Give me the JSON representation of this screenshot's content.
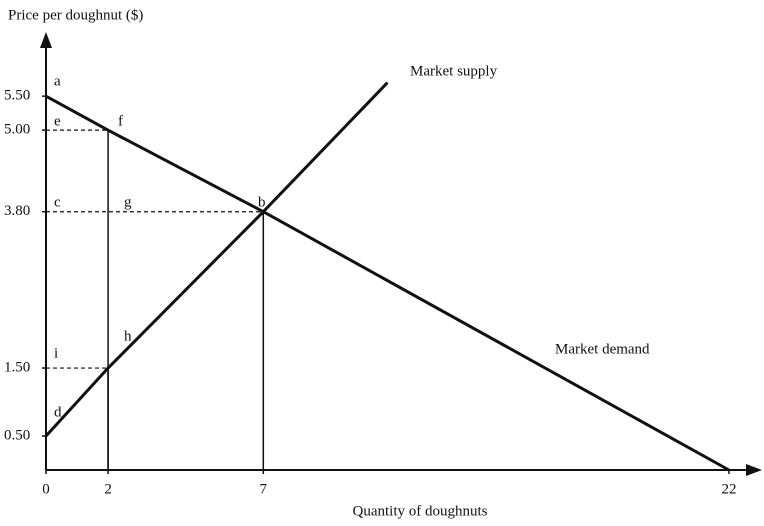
{
  "chart_data": {
    "type": "line",
    "y_label": "Price per doughnut ($)",
    "x_label": "Quantity of doughnuts",
    "series": [
      {
        "name": "Market supply",
        "color": "#111111",
        "x": [
          0,
          2,
          7,
          11
        ],
        "values": [
          0.5,
          1.5,
          3.8,
          5.7
        ]
      },
      {
        "name": "Market demand",
        "color": "#111111",
        "x": [
          0,
          2,
          7,
          22
        ],
        "values": [
          5.5,
          5.0,
          3.8,
          0
        ]
      }
    ],
    "point_labels": [
      "a",
      "e",
      "f",
      "c",
      "g",
      "b",
      "i",
      "h",
      "d"
    ],
    "xlim": [
      0,
      23
    ],
    "ylim": [
      0,
      6.4
    ],
    "xticks": [
      0,
      2,
      7,
      22
    ],
    "yticks": [
      {
        "value": 0.5,
        "label": "0.50"
      },
      {
        "value": 1.5,
        "label": "1.50"
      },
      {
        "value": 3.8,
        "label": "3.80"
      },
      {
        "value": 5.0,
        "label": "5.00"
      },
      {
        "value": 5.5,
        "label": "5.50"
      }
    ]
  }
}
